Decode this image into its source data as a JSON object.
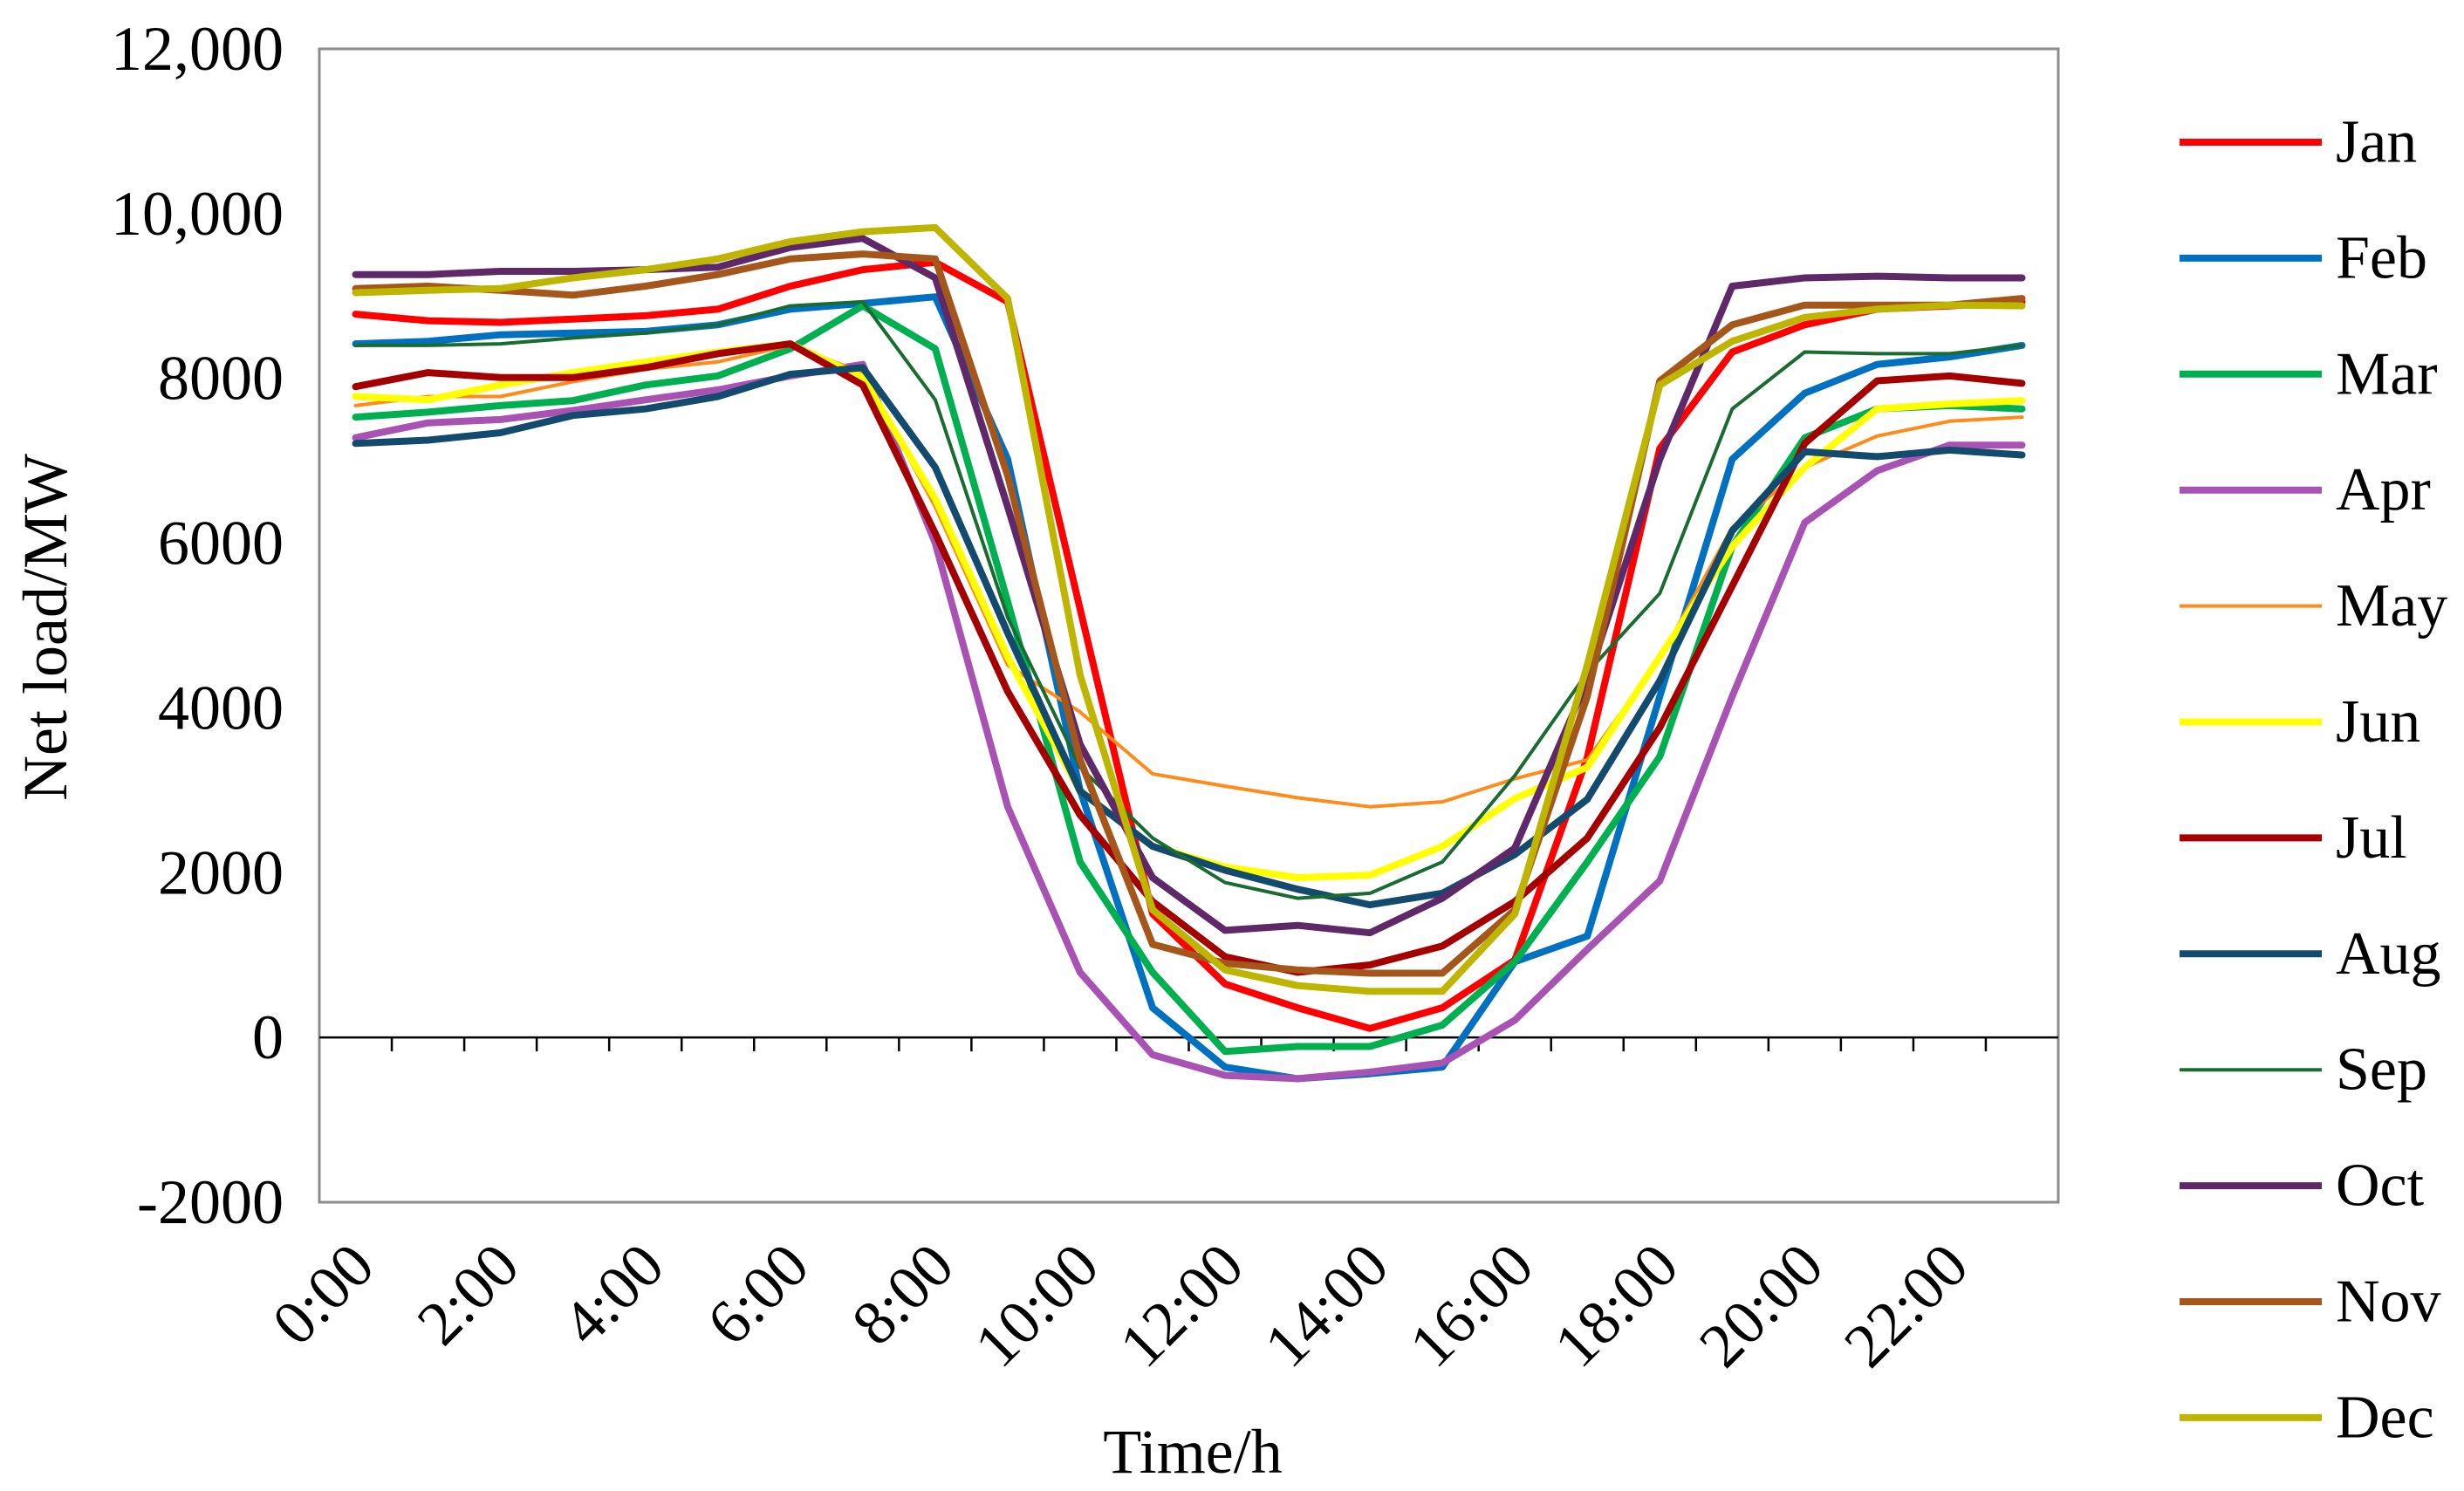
{
  "chart_data": {
    "type": "line",
    "title": "",
    "xlabel": "Time/h",
    "ylabel": "Net load/MW",
    "x": [
      0,
      1,
      2,
      3,
      4,
      5,
      6,
      7,
      8,
      9,
      10,
      11,
      12,
      13,
      14,
      15,
      16,
      17,
      18,
      19,
      20,
      21,
      22,
      23
    ],
    "x_ticks": [
      0,
      2,
      4,
      6,
      8,
      10,
      12,
      14,
      16,
      18,
      20,
      22
    ],
    "x_tick_labels": [
      "0:00",
      "2:00",
      "4:00",
      "6:00",
      "8:00",
      "10:00",
      "12:00",
      "14:00",
      "16:00",
      "18:00",
      "20:00",
      "22:00"
    ],
    "ylim": [
      -2000,
      12000
    ],
    "y_ticks": [
      12000,
      10000,
      8000,
      6000,
      4000,
      2000,
      0,
      -2000
    ],
    "y_tick_labels": [
      "12,000",
      "10,000",
      "8000",
      "6000",
      "4000",
      "2000",
      "0",
      "-2000"
    ],
    "grid": false,
    "legend_position": "right",
    "series": [
      {
        "name": "Jan",
        "color": "#FF0000",
        "values": [
          8780,
          8700,
          8680,
          8720,
          8760,
          8840,
          9120,
          9320,
          9410,
          8930,
          5200,
          1500,
          650,
          360,
          110,
          360,
          940,
          3400,
          7150,
          8320,
          8650,
          8840,
          8880,
          8930
        ]
      },
      {
        "name": "Feb",
        "color": "#0070C0",
        "values": [
          8420,
          8450,
          8530,
          8550,
          8570,
          8650,
          8840,
          8910,
          8990,
          7020,
          3000,
          360,
          -360,
          -500,
          -440,
          -360,
          920,
          1230,
          4140,
          7020,
          7820,
          8170,
          8260,
          8400
        ]
      },
      {
        "name": "Mar",
        "color": "#00B050",
        "values": [
          7530,
          7590,
          7670,
          7730,
          7920,
          8030,
          8360,
          8880,
          8360,
          5290,
          2130,
          790,
          -170,
          -110,
          -110,
          150,
          920,
          2130,
          3410,
          5960,
          7280,
          7630,
          7670,
          7630
        ]
      },
      {
        "name": "Apr",
        "color": "#A852B4",
        "values": [
          7280,
          7460,
          7500,
          7610,
          7740,
          7860,
          8030,
          8170,
          6000,
          2800,
          790,
          -210,
          -460,
          -500,
          -420,
          -310,
          210,
          1070,
          1900,
          4140,
          6250,
          6880,
          7190,
          7190
        ]
      },
      {
        "name": "May",
        "color": "#FF8C1A",
        "values": [
          7670,
          7780,
          7780,
          7960,
          8110,
          8200,
          8400,
          8070,
          6440,
          4520,
          3950,
          3200,
          3050,
          2910,
          2800,
          2860,
          3140,
          3370,
          4600,
          6190,
          6920,
          7300,
          7480,
          7530
        ]
      },
      {
        "name": "Jun",
        "color": "#FFFF00",
        "values": [
          7780,
          7740,
          7920,
          8070,
          8200,
          8320,
          8420,
          8010,
          6540,
          4620,
          2990,
          2320,
          2070,
          1940,
          1970,
          2320,
          2900,
          3280,
          4620,
          5960,
          6920,
          7630,
          7690,
          7730
        ]
      },
      {
        "name": "Jul",
        "color": "#A40000",
        "values": [
          7900,
          8070,
          8010,
          8010,
          8130,
          8300,
          8420,
          7920,
          6120,
          4200,
          2700,
          1650,
          980,
          790,
          880,
          1110,
          1650,
          2420,
          3760,
          5480,
          7210,
          7970,
          8030,
          7940
        ]
      },
      {
        "name": "Aug",
        "color": "#134B6E",
        "values": [
          7210,
          7250,
          7340,
          7550,
          7630,
          7780,
          8050,
          8130,
          6920,
          4910,
          2990,
          2320,
          2030,
          1800,
          1610,
          1750,
          2220,
          2890,
          4330,
          6150,
          7110,
          7050,
          7130,
          7070
        ]
      },
      {
        "name": "Sep",
        "color": "#1A6B30",
        "values": [
          8400,
          8400,
          8420,
          8490,
          8550,
          8650,
          8880,
          8930,
          7740,
          5100,
          3280,
          2420,
          1880,
          1690,
          1750,
          2130,
          3180,
          4430,
          5390,
          7630,
          8320,
          8300,
          8300,
          8400
        ]
      },
      {
        "name": "Oct",
        "color": "#5F2868",
        "values": [
          9260,
          9260,
          9300,
          9300,
          9320,
          9350,
          9590,
          9700,
          9220,
          6440,
          3560,
          1940,
          1300,
          1360,
          1270,
          1690,
          2300,
          4330,
          7020,
          9120,
          9220,
          9240,
          9220,
          9220
        ]
      },
      {
        "name": "Nov",
        "color": "#A5561A",
        "values": [
          9090,
          9120,
          9070,
          9010,
          9120,
          9260,
          9450,
          9510,
          9450,
          6820,
          3370,
          1130,
          900,
          820,
          780,
          780,
          1550,
          4140,
          7970,
          8650,
          8890,
          8890,
          8890,
          8970
        ]
      },
      {
        "name": "Dec",
        "color": "#BDB500",
        "values": [
          9040,
          9070,
          9090,
          9220,
          9320,
          9450,
          9660,
          9780,
          9830,
          8970,
          4400,
          1550,
          820,
          630,
          560,
          560,
          1500,
          4520,
          7920,
          8450,
          8740,
          8840,
          8890,
          8880
        ]
      }
    ]
  }
}
